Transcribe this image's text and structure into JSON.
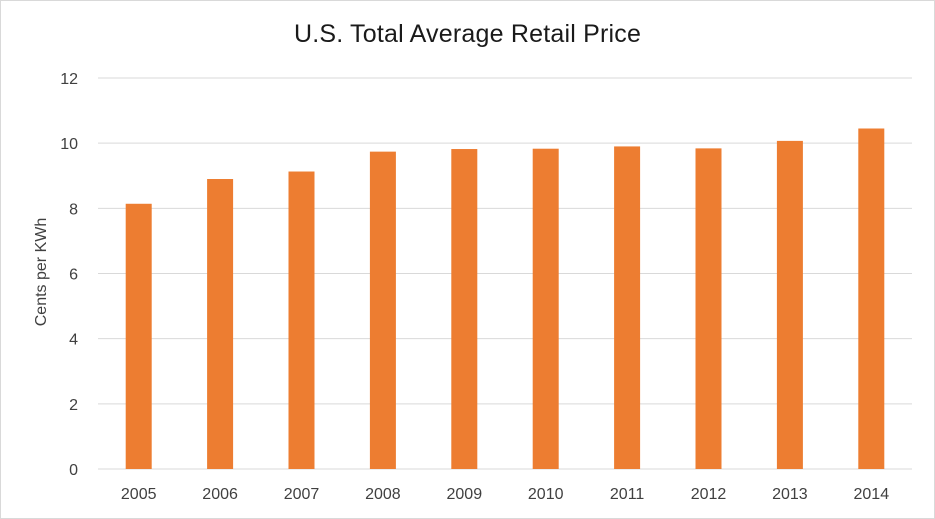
{
  "chart_data": {
    "type": "bar",
    "title": "U.S. Total Average Retail Price",
    "xlabel": "",
    "ylabel": "Cents per KWh",
    "categories": [
      "2005",
      "2006",
      "2007",
      "2008",
      "2009",
      "2010",
      "2011",
      "2012",
      "2013",
      "2014"
    ],
    "values": [
      8.14,
      8.9,
      9.13,
      9.74,
      9.82,
      9.83,
      9.9,
      9.84,
      10.07,
      10.45
    ],
    "ylim": [
      0,
      12
    ],
    "yticks": [
      0,
      2,
      4,
      6,
      8,
      10,
      12
    ],
    "grid": true,
    "legend": "none",
    "bar_color": "#ed7d31",
    "grid_color": "#d9d9d9"
  }
}
